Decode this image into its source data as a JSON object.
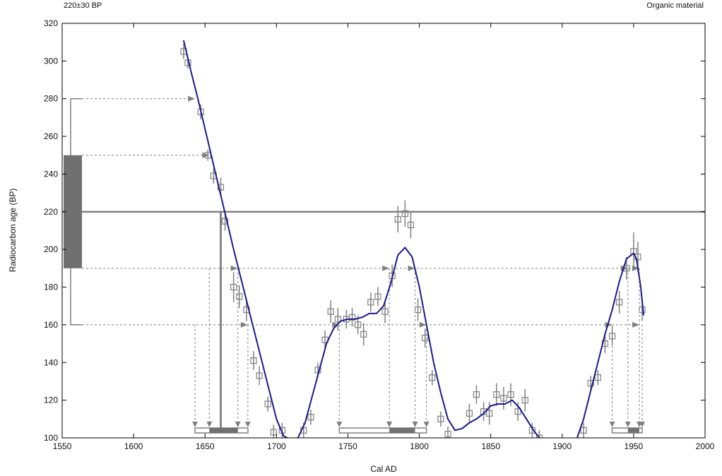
{
  "header": {
    "left_label": "220±30 BP",
    "right_label": "Organic material"
  },
  "chart_data": {
    "type": "line",
    "title": "",
    "xlabel": "Cal AD",
    "ylabel": "Radiocarbon age (BP)",
    "xlim": [
      1550,
      2000
    ],
    "ylim": [
      100,
      320
    ],
    "xticks": [
      1550,
      1600,
      1650,
      1700,
      1750,
      1800,
      1850,
      1900,
      1950,
      2000
    ],
    "yticks": [
      100,
      120,
      140,
      160,
      180,
      200,
      220,
      240,
      260,
      280,
      300,
      320
    ],
    "grid": false,
    "colors": {
      "curve": "#1a1a8c",
      "gray": "#808080",
      "dark_gray": "#707070"
    },
    "sample": {
      "age": 220,
      "sigma1": [
        190,
        250
      ],
      "sigma2": [
        160,
        280
      ]
    },
    "calibration_curve": [
      [
        1635,
        311
      ],
      [
        1640,
        295
      ],
      [
        1645,
        280
      ],
      [
        1650,
        264
      ],
      [
        1655,
        248
      ],
      [
        1660,
        232
      ],
      [
        1665,
        216
      ],
      [
        1670,
        200
      ],
      [
        1675,
        185
      ],
      [
        1680,
        170
      ],
      [
        1685,
        155
      ],
      [
        1690,
        140
      ],
      [
        1695,
        125
      ],
      [
        1700,
        110
      ],
      [
        1705,
        101
      ],
      [
        1710,
        99
      ],
      [
        1715,
        100
      ],
      [
        1720,
        108
      ],
      [
        1725,
        122
      ],
      [
        1730,
        136
      ],
      [
        1735,
        150
      ],
      [
        1740,
        158
      ],
      [
        1745,
        162
      ],
      [
        1750,
        163
      ],
      [
        1755,
        163
      ],
      [
        1760,
        164
      ],
      [
        1765,
        166
      ],
      [
        1770,
        166
      ],
      [
        1775,
        170
      ],
      [
        1780,
        182
      ],
      [
        1785,
        197
      ],
      [
        1790,
        201
      ],
      [
        1795,
        196
      ],
      [
        1800,
        180
      ],
      [
        1805,
        160
      ],
      [
        1810,
        140
      ],
      [
        1815,
        124
      ],
      [
        1820,
        110
      ],
      [
        1825,
        104
      ],
      [
        1830,
        105
      ],
      [
        1835,
        108
      ],
      [
        1840,
        110
      ],
      [
        1845,
        113
      ],
      [
        1850,
        117
      ],
      [
        1855,
        118
      ],
      [
        1860,
        118
      ],
      [
        1865,
        120
      ],
      [
        1870,
        116
      ],
      [
        1875,
        110
      ],
      [
        1880,
        104
      ],
      [
        1885,
        99
      ]
    ],
    "calibration_curve_2": [
      [
        1910,
        99
      ],
      [
        1915,
        110
      ],
      [
        1920,
        125
      ],
      [
        1925,
        140
      ],
      [
        1930,
        155
      ],
      [
        1935,
        168
      ],
      [
        1940,
        183
      ],
      [
        1945,
        195
      ],
      [
        1950,
        198
      ],
      [
        1952,
        195
      ],
      [
        1955,
        180
      ],
      [
        1957,
        165
      ]
    ],
    "data_points": [
      {
        "x": 1635,
        "y": 305,
        "err": 4
      },
      {
        "x": 1638,
        "y": 299,
        "err": 3
      },
      {
        "x": 1647,
        "y": 273,
        "err": 4
      },
      {
        "x": 1652,
        "y": 250,
        "err": 3
      },
      {
        "x": 1656,
        "y": 239,
        "err": 4
      },
      {
        "x": 1661,
        "y": 233,
        "err": 5
      },
      {
        "x": 1664,
        "y": 215,
        "err": 5
      },
      {
        "x": 1670,
        "y": 180,
        "err": 8
      },
      {
        "x": 1674,
        "y": 175,
        "err": 6
      },
      {
        "x": 1679,
        "y": 168,
        "err": 6
      },
      {
        "x": 1684,
        "y": 141,
        "err": 5
      },
      {
        "x": 1688,
        "y": 133,
        "err": 5
      },
      {
        "x": 1694,
        "y": 118,
        "err": 4
      },
      {
        "x": 1698,
        "y": 103,
        "err": 4
      },
      {
        "x": 1704,
        "y": 104,
        "err": 4
      },
      {
        "x": 1719,
        "y": 104,
        "err": 4
      },
      {
        "x": 1724,
        "y": 111,
        "err": 4
      },
      {
        "x": 1729,
        "y": 136,
        "err": 4
      },
      {
        "x": 1734,
        "y": 152,
        "err": 5
      },
      {
        "x": 1738,
        "y": 167,
        "err": 6
      },
      {
        "x": 1743,
        "y": 163,
        "err": 6
      },
      {
        "x": 1749,
        "y": 163,
        "err": 5
      },
      {
        "x": 1753,
        "y": 164,
        "err": 5
      },
      {
        "x": 1757,
        "y": 160,
        "err": 5
      },
      {
        "x": 1761,
        "y": 155,
        "err": 6
      },
      {
        "x": 1766,
        "y": 172,
        "err": 5
      },
      {
        "x": 1771,
        "y": 175,
        "err": 5
      },
      {
        "x": 1776,
        "y": 167,
        "err": 6
      },
      {
        "x": 1781,
        "y": 186,
        "err": 6
      },
      {
        "x": 1785,
        "y": 216,
        "err": 7
      },
      {
        "x": 1790,
        "y": 219,
        "err": 7
      },
      {
        "x": 1794,
        "y": 213,
        "err": 7
      },
      {
        "x": 1799,
        "y": 168,
        "err": 6
      },
      {
        "x": 1804,
        "y": 153,
        "err": 5
      },
      {
        "x": 1809,
        "y": 132,
        "err": 4
      },
      {
        "x": 1815,
        "y": 110,
        "err": 4
      },
      {
        "x": 1820,
        "y": 102,
        "err": 4
      },
      {
        "x": 1835,
        "y": 113,
        "err": 5
      },
      {
        "x": 1840,
        "y": 123,
        "err": 5
      },
      {
        "x": 1845,
        "y": 114,
        "err": 5
      },
      {
        "x": 1849,
        "y": 113,
        "err": 6
      },
      {
        "x": 1854,
        "y": 123,
        "err": 6
      },
      {
        "x": 1859,
        "y": 121,
        "err": 6
      },
      {
        "x": 1864,
        "y": 123,
        "err": 6
      },
      {
        "x": 1869,
        "y": 114,
        "err": 5
      },
      {
        "x": 1874,
        "y": 120,
        "err": 6
      },
      {
        "x": 1879,
        "y": 104,
        "err": 4
      },
      {
        "x": 1884,
        "y": 100,
        "err": 4
      },
      {
        "x": 1915,
        "y": 104,
        "err": 4
      },
      {
        "x": 1920,
        "y": 129,
        "err": 4
      },
      {
        "x": 1925,
        "y": 132,
        "err": 4
      },
      {
        "x": 1930,
        "y": 150,
        "err": 5
      },
      {
        "x": 1935,
        "y": 154,
        "err": 5
      },
      {
        "x": 1940,
        "y": 172,
        "err": 6
      },
      {
        "x": 1945,
        "y": 190,
        "err": 6
      },
      {
        "x": 1950,
        "y": 199,
        "err": 10
      },
      {
        "x": 1953,
        "y": 196,
        "err": 8
      },
      {
        "x": 1956,
        "y": 168,
        "err": 6
      }
    ],
    "range_lines_1sigma": [
      1653,
      1673,
      1779,
      1797,
      1946,
      1954
    ],
    "range_lines_2sigma": [
      1643,
      1680,
      1744,
      1805,
      1935,
      1956
    ],
    "prob_bars_2sigma": [
      [
        1643,
        1680
      ],
      [
        1744,
        1805
      ],
      [
        1935,
        1956
      ]
    ],
    "prob_bars_1sigma": [
      [
        1653,
        1673
      ],
      [
        1779,
        1797
      ],
      [
        1946,
        1954
      ]
    ],
    "median_line": 1661,
    "arrows_160": [
      1680,
      1744,
      1805,
      1935,
      1954
    ],
    "arrows_190": [
      1673,
      1779,
      1797,
      1946,
      1954
    ],
    "arrows_250": [
      1653
    ],
    "arrows_280": [
      1643
    ]
  }
}
